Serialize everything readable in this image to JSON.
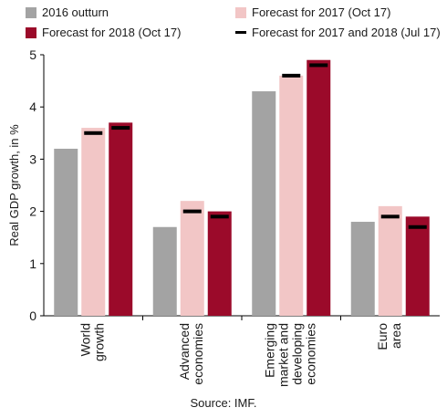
{
  "chart_data": {
    "type": "bar",
    "categories": [
      [
        "World",
        "growth"
      ],
      [
        "Advanced",
        "economies"
      ],
      [
        "Emerging",
        "market and",
        "developing",
        "economies"
      ],
      [
        "Euro",
        "area"
      ]
    ],
    "series": [
      {
        "name": "2016 outturn",
        "values": [
          3.2,
          1.7,
          4.3,
          1.8
        ],
        "color": "#a3a3a3"
      },
      {
        "name": "Forecast for 2017 (Oct 17)",
        "values": [
          3.6,
          2.2,
          4.6,
          2.1
        ],
        "color": "#f2c6c6"
      },
      {
        "name": "Forecast for 2018 (Oct 17)",
        "values": [
          3.7,
          2.0,
          4.9,
          1.9
        ],
        "color": "#9b0a2a"
      }
    ],
    "markers": {
      "name": "Forecast for 2017 and 2018 (Jul 17)",
      "color": "#000000",
      "values_2017": [
        3.5,
        2.0,
        4.6,
        1.9
      ],
      "values_2018": [
        3.6,
        1.9,
        4.8,
        1.7
      ]
    },
    "ylabel": "Real GDP growth, in %",
    "ylim": [
      0,
      5
    ],
    "yticks": [
      "0",
      "1",
      "2",
      "3",
      "4",
      "5"
    ],
    "grid": false,
    "legend": "top"
  },
  "source": "Source: IMF."
}
